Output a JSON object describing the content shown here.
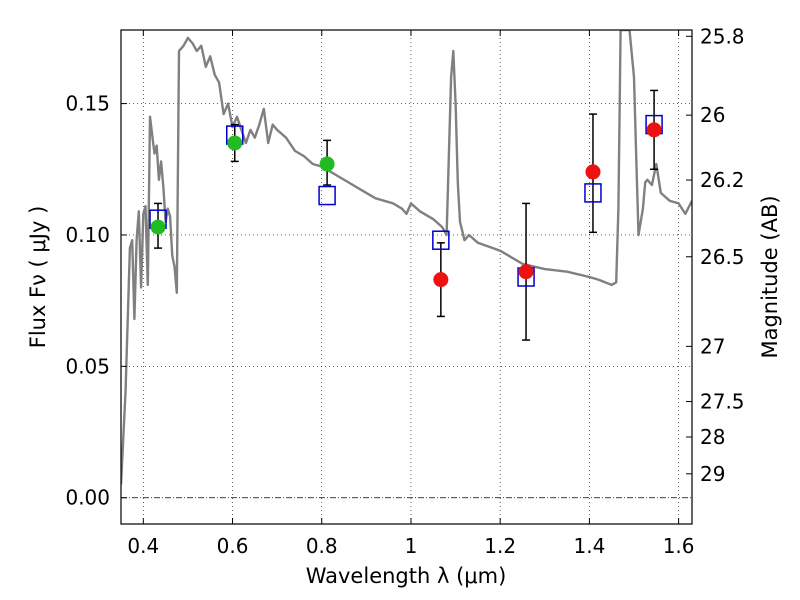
{
  "chart_data": {
    "type": "scatter",
    "xlabel": "Wavelength  λ (μm)",
    "ylabel": "Flux  Fν  ( μJy )",
    "y2label": "Magnitude (AB)",
    "xlim": [
      0.35,
      1.63
    ],
    "ylim": [
      -0.01,
      0.178
    ],
    "grid": true,
    "x_ticks": [
      0.4,
      0.6,
      0.8,
      1.0,
      1.2,
      1.4,
      1.6
    ],
    "x_tick_labels": [
      "0.4",
      "0.6",
      "0.8",
      "1",
      "1.2",
      "1.4",
      "1.6"
    ],
    "y_ticks": [
      0.0,
      0.05,
      0.1,
      0.15
    ],
    "y_tick_labels": [
      "0.00",
      "0.05",
      "0.10",
      "0.15"
    ],
    "mag_ticks": [
      {
        "label": "25.8",
        "flux": 0.1756
      },
      {
        "label": "26",
        "flux": 0.1456
      },
      {
        "label": "26.2",
        "flux": 0.1209
      },
      {
        "label": "26.5",
        "flux": 0.0917
      },
      {
        "label": "27",
        "flux": 0.0576
      },
      {
        "label": "27.5",
        "flux": 0.0366
      },
      {
        "label": "28",
        "flux": 0.0231
      },
      {
        "label": "29",
        "flux": 0.0091
      }
    ],
    "model_sed": {
      "color": "#808080",
      "x": [
        0.35,
        0.36,
        0.37,
        0.375,
        0.38,
        0.385,
        0.39,
        0.395,
        0.4,
        0.405,
        0.41,
        0.415,
        0.42,
        0.425,
        0.43,
        0.435,
        0.44,
        0.445,
        0.45,
        0.455,
        0.46,
        0.465,
        0.47,
        0.475,
        0.48,
        0.49,
        0.5,
        0.51,
        0.52,
        0.53,
        0.54,
        0.55,
        0.56,
        0.57,
        0.58,
        0.59,
        0.6,
        0.61,
        0.62,
        0.63,
        0.64,
        0.65,
        0.66,
        0.67,
        0.68,
        0.69,
        0.7,
        0.72,
        0.74,
        0.76,
        0.78,
        0.8,
        0.82,
        0.84,
        0.86,
        0.88,
        0.9,
        0.92,
        0.94,
        0.96,
        0.98,
        0.99,
        1.0,
        1.02,
        1.05,
        1.07,
        1.08,
        1.09,
        1.095,
        1.1,
        1.105,
        1.11,
        1.12,
        1.13,
        1.15,
        1.2,
        1.25,
        1.3,
        1.35,
        1.4,
        1.42,
        1.45,
        1.46,
        1.465,
        1.47,
        1.48,
        1.49,
        1.5,
        1.505,
        1.51,
        1.52,
        1.525,
        1.53,
        1.54,
        1.55,
        1.56,
        1.58,
        1.6,
        1.615,
        1.63
      ],
      "y": [
        0.005,
        0.04,
        0.095,
        0.098,
        0.068,
        0.098,
        0.109,
        0.08,
        0.108,
        0.111,
        0.081,
        0.145,
        0.138,
        0.131,
        0.134,
        0.121,
        0.128,
        0.118,
        0.105,
        0.11,
        0.107,
        0.092,
        0.088,
        0.078,
        0.17,
        0.172,
        0.175,
        0.173,
        0.17,
        0.172,
        0.164,
        0.168,
        0.161,
        0.158,
        0.146,
        0.15,
        0.141,
        0.145,
        0.14,
        0.135,
        0.14,
        0.137,
        0.142,
        0.148,
        0.135,
        0.142,
        0.14,
        0.137,
        0.132,
        0.13,
        0.127,
        0.126,
        0.124,
        0.122,
        0.12,
        0.118,
        0.116,
        0.114,
        0.113,
        0.112,
        0.11,
        0.108,
        0.112,
        0.109,
        0.106,
        0.103,
        0.1,
        0.16,
        0.17,
        0.15,
        0.12,
        0.105,
        0.098,
        0.1,
        0.097,
        0.094,
        0.089,
        0.087,
        0.086,
        0.084,
        0.083,
        0.081,
        0.082,
        0.11,
        0.178,
        0.178,
        0.178,
        0.16,
        0.13,
        0.1,
        0.11,
        0.12,
        0.121,
        0.119,
        0.127,
        0.116,
        0.113,
        0.112,
        0.108,
        0.113
      ]
    },
    "series": [
      {
        "name": "",
        "color": "#22bb22",
        "marker": "circle",
        "x": [
          0.433,
          0.605,
          0.812
        ],
        "y": [
          0.103,
          0.135,
          0.127
        ]
      },
      {
        "name": "",
        "color": "#ee1111",
        "marker": "circle",
        "x": [
          1.067,
          1.258,
          1.408,
          1.545
        ],
        "y": [
          0.083,
          0.086,
          0.124,
          0.14
        ]
      }
    ],
    "error_bars": {
      "x": [
        0.433,
        0.605,
        0.812,
        1.067,
        1.258,
        1.408,
        1.545
      ],
      "low": [
        0.095,
        0.128,
        0.119,
        0.069,
        0.06,
        0.101,
        0.125
      ],
      "high": [
        0.112,
        0.142,
        0.136,
        0.097,
        0.112,
        0.146,
        0.155
      ]
    },
    "model_fluxes": {
      "color": "#0000cc",
      "marker": "open-square",
      "x": [
        0.433,
        0.605,
        0.812,
        1.067,
        1.258,
        1.408,
        1.545
      ],
      "y": [
        0.106,
        0.138,
        0.115,
        0.098,
        0.084,
        0.116,
        0.142
      ]
    }
  }
}
